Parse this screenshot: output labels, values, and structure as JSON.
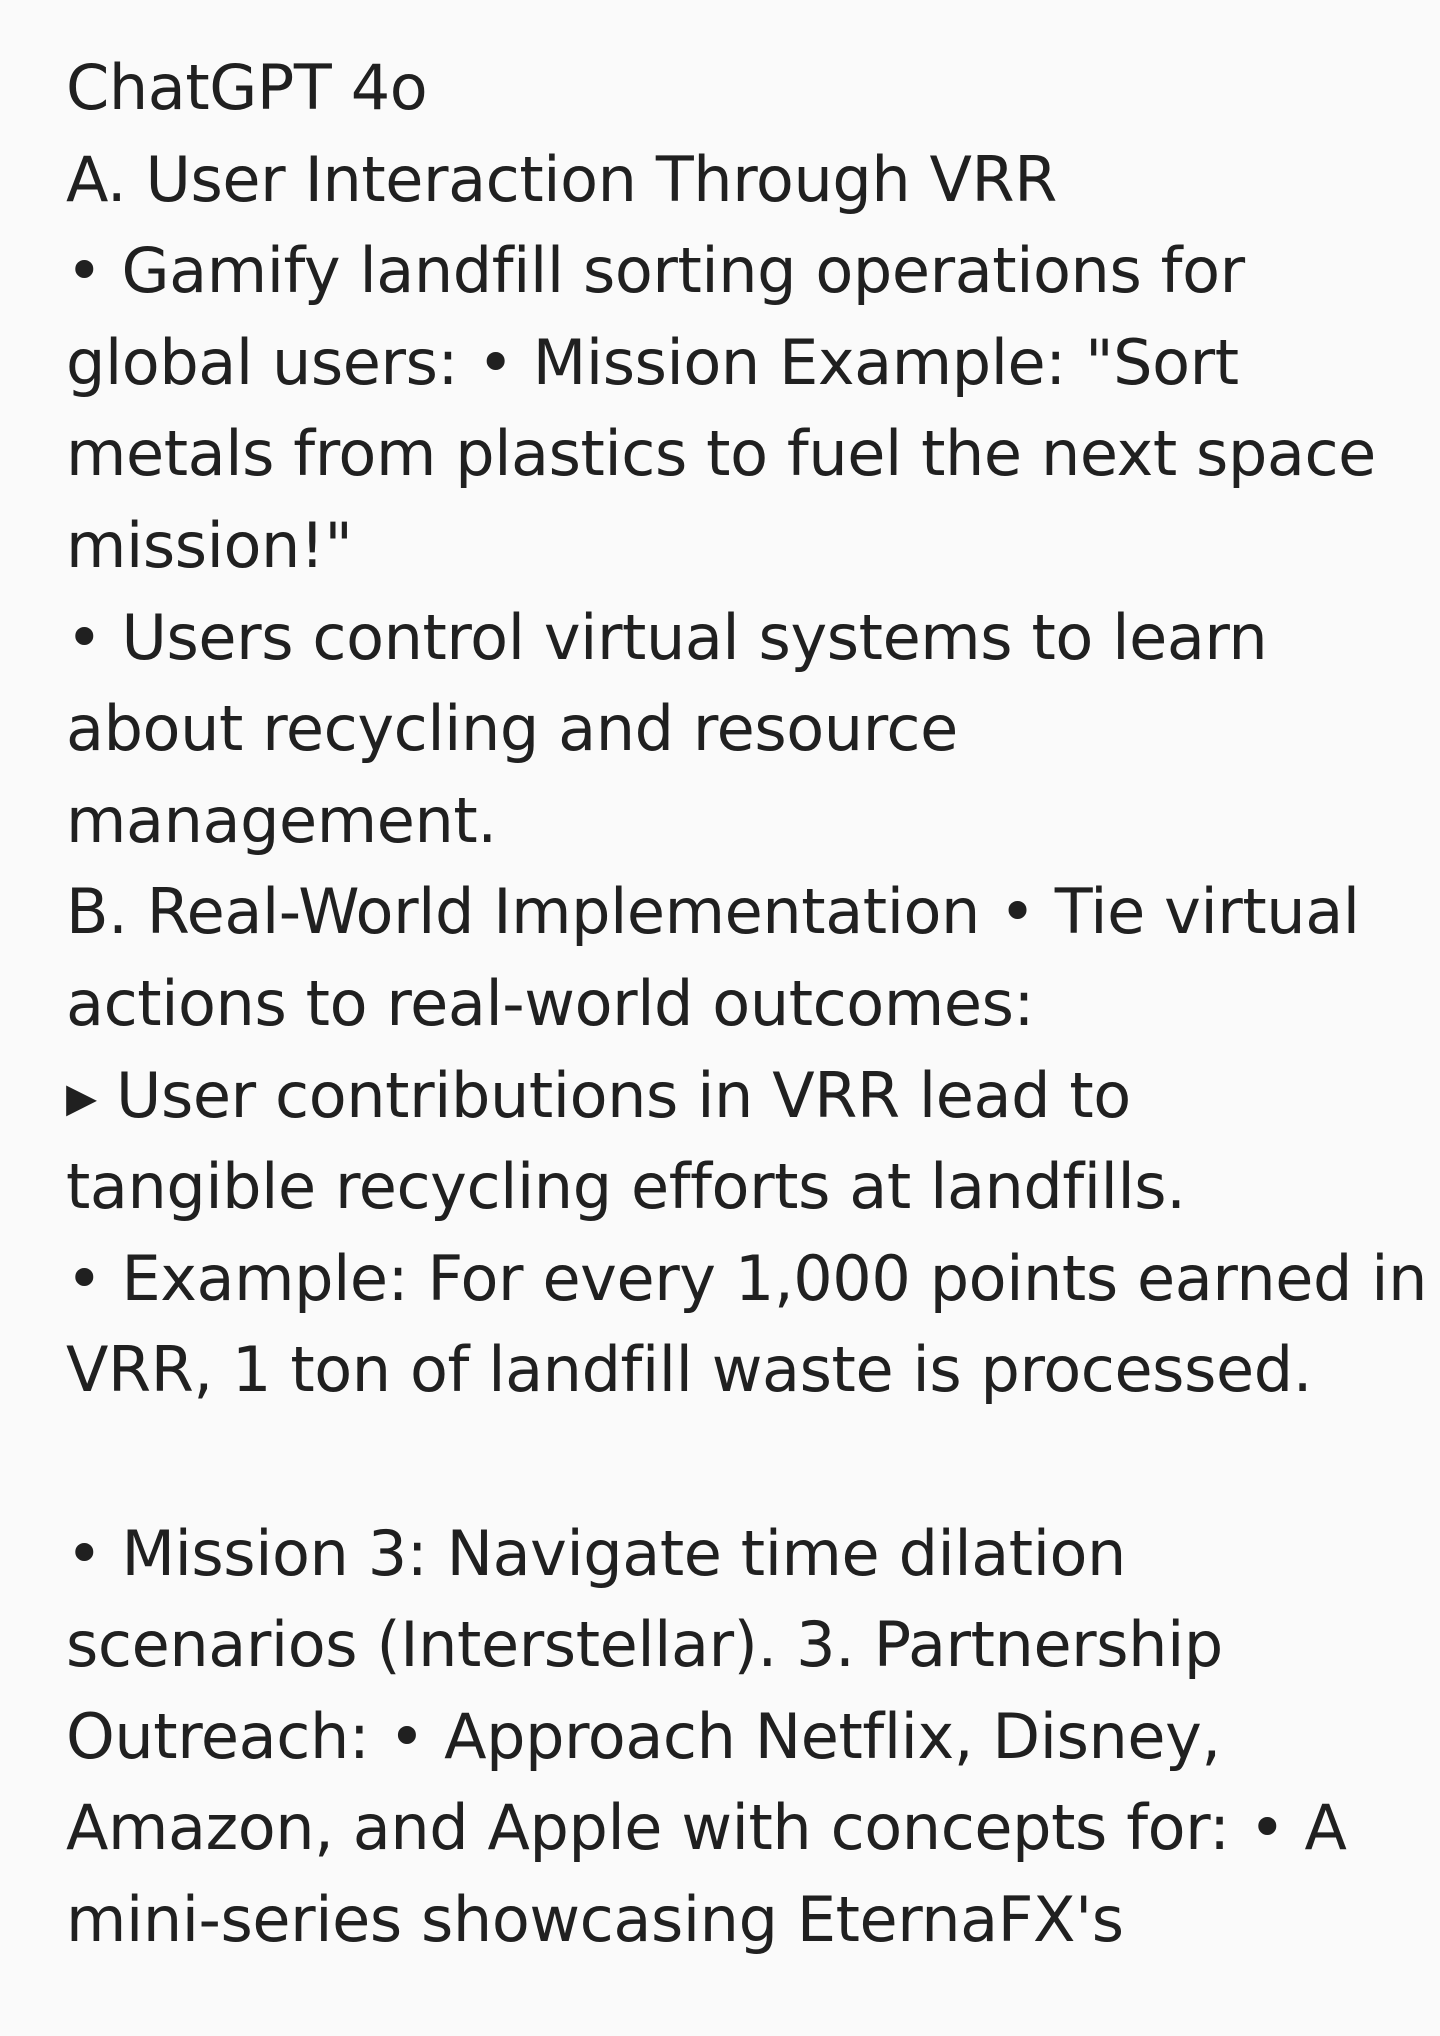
{
  "message": {
    "lines": [
      "ChatGPT 4o",
      "A. User Interaction Through VRR",
      "• Gamify landfill sorting operations for",
      "global users: • Mission Example: \"Sort",
      "metals from plastics to fuel the next space",
      "mission!\"",
      "• Users control virtual systems to learn",
      "about recycling and resource",
      "management.",
      "B. Real-World Implementation • Tie virtual",
      "actions to real-world outcomes:",
      "▸ User contributions in VRR lead to",
      "tangible recycling efforts at landfills.",
      "• Example: For every 1,000 points earned in",
      "VRR, 1 ton of landfill waste is processed.",
      "",
      "• Mission 3: Navigate time dilation",
      "scenarios (Interstellar). 3. Partnership",
      "Outreach: • Approach Netflix, Disney,",
      "Amazon, and Apple with concepts for: • A",
      "mini-series showcasing EternaFX's"
    ]
  },
  "colors": {
    "background": "#fafafa",
    "text": "#202020"
  }
}
